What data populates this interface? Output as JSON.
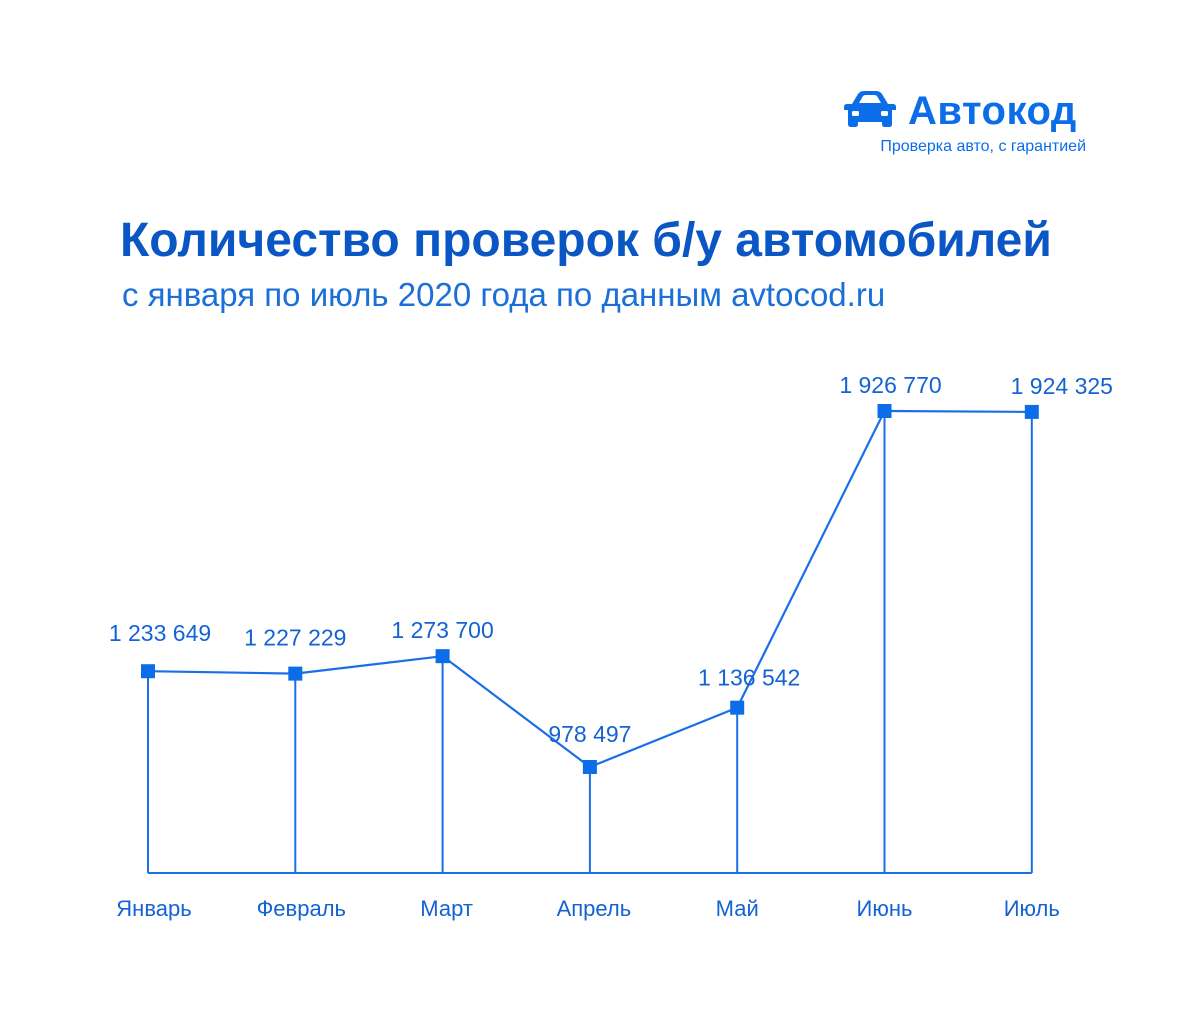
{
  "brand": {
    "name": "Автокод",
    "tagline": "Проверка авто, с гарантией",
    "icon": "car-icon",
    "color": "#0b6ee8"
  },
  "header": {
    "title": "Количество проверок б/у автомобилей",
    "subtitle": "с января по июль 2020 года по данным avtocod.ru"
  },
  "colors": {
    "title": "#0a56c4",
    "line": "#1a6fe6",
    "marker": "#0b6ee8",
    "label": "#1463d4"
  },
  "chart_data": {
    "type": "line",
    "categories": [
      "Январь",
      "Февраль",
      "Март",
      "Апрель",
      "Май",
      "Июнь",
      "Июль"
    ],
    "values": [
      1233649,
      1227229,
      1273700,
      978497,
      1136542,
      1926770,
      1924325
    ],
    "value_labels": [
      "1 233 649",
      "1 227 229",
      "1 273 700",
      "978 497",
      "1 136 542",
      "1 926 770",
      "1 924 325"
    ],
    "title": "Количество проверок б/у автомобилей",
    "subtitle": "с января по июль 2020 года по данным avtocod.ru",
    "xlabel": "",
    "ylabel": "",
    "ylim": [
      0,
      2000000
    ],
    "grid": false,
    "legend": "none",
    "marker": "square",
    "drop_lines": true
  }
}
